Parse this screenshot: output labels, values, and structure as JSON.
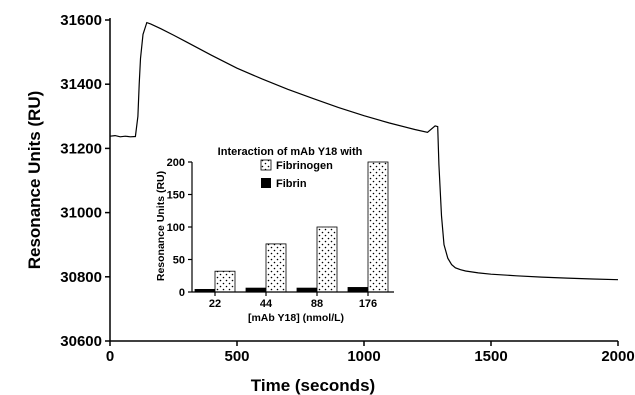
{
  "chart_data": [
    {
      "type": "line",
      "xlabel": "Time (seconds)",
      "ylabel": "Resonance Units (RU)",
      "xlim": [
        0,
        2000
      ],
      "ylim": [
        30600,
        31600
      ],
      "xticks": [
        "0",
        "500",
        "1000",
        "1500",
        "2000"
      ],
      "yticks": [
        "30600",
        "30800",
        "31000",
        "31200",
        "31400",
        "31600"
      ],
      "grid": false,
      "series": [
        {
          "x": [
            0,
            20,
            40,
            60,
            80,
            100,
            110,
            115,
            120,
            130,
            145,
            160,
            200,
            250,
            300,
            400,
            500,
            600,
            700,
            800,
            900,
            1000,
            1100,
            1200,
            1250,
            1280,
            1290,
            1295,
            1305,
            1315,
            1330,
            1345,
            1360,
            1380,
            1400,
            1450,
            1500,
            1600,
            1700,
            1800,
            1900,
            2000
          ],
          "y": [
            31238,
            31240,
            31236,
            31238,
            31236,
            31237,
            31300,
            31400,
            31480,
            31555,
            31592,
            31588,
            31573,
            31553,
            31532,
            31490,
            31450,
            31416,
            31384,
            31355,
            31327,
            31302,
            31279,
            31259,
            31250,
            31270,
            31268,
            31150,
            30990,
            30900,
            30858,
            30838,
            30828,
            30822,
            30818,
            30812,
            30808,
            30803,
            30799,
            30796,
            30793,
            30791
          ]
        }
      ]
    },
    {
      "type": "bar",
      "title": "Interaction of mAb Y18 with",
      "xlabel": "[mAb Y18] (nmol/L)",
      "ylabel": "Resonance Units (RU)",
      "categories": [
        "22",
        "44",
        "88",
        "176"
      ],
      "ylim": [
        0,
        200
      ],
      "yticks": [
        "0",
        "50",
        "100",
        "150",
        "200"
      ],
      "legend_position": "top",
      "series": [
        {
          "name": "Fibrin",
          "color": "#000000",
          "pattern": "solid",
          "values": [
            4,
            6,
            6,
            7
          ]
        },
        {
          "name": "Fibrinogen",
          "color": "#ffffff",
          "pattern": "dotted",
          "values": [
            32,
            74,
            100,
            200
          ]
        }
      ]
    }
  ]
}
